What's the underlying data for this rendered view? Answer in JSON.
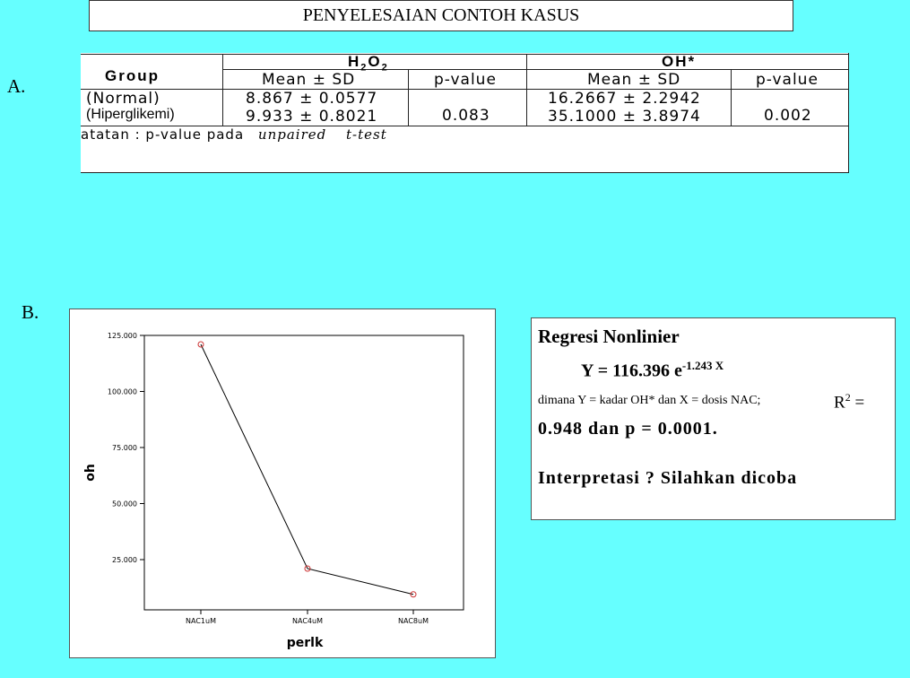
{
  "title": "PENYELESAIAN CONTOH KASUS",
  "section_a_label": "A.",
  "section_b_label": "B.",
  "table_a": {
    "group_header": "Group",
    "h2o2_header_base": "H",
    "h2o2_sub1": "2",
    "h2o2_mid": "O",
    "h2o2_sub2": "2",
    "oh_header": "OH*",
    "mean_sd_header": "Mean ± SD",
    "pvalue_header": "p-value",
    "rows": [
      {
        "group": "(Normal)",
        "h2o2_mean_sd": "8.867 ± 0.0577",
        "oh_mean_sd": "16.2667 ± 2.2942"
      },
      {
        "group": "(Hiperglikemi)",
        "h2o2_mean_sd": "9.933 ± 0.8021",
        "oh_mean_sd": "35.1000 ± 3.8974"
      }
    ],
    "h2o2_pvalue": "0.083",
    "oh_pvalue": "0.002",
    "note_prefix": "atatan : p-value pada",
    "note_italic1": "unpaired",
    "note_italic2": "t-test"
  },
  "chart_data": {
    "type": "line",
    "categories": [
      "NAC1uM",
      "NAC4uM",
      "NAC8uM"
    ],
    "values": [
      121,
      21,
      9.5
    ],
    "xlabel": "perlk",
    "ylabel": "oh",
    "ylim": [
      0,
      125
    ],
    "yticks": [
      25,
      50,
      75,
      100,
      125
    ],
    "ytick_labels": [
      "25.000",
      "50.000",
      "75.000",
      "100.000",
      "125.000"
    ],
    "marker_color": "#cc3333",
    "line_color": "#000000"
  },
  "regression": {
    "title": "Regresi Nonlinier",
    "eq_base": "Y = 116.396 e",
    "eq_exp": "-1.243 X",
    "description": "dimana Y = kadar OH* dan X = dosis NAC;",
    "r2_prefix": "R",
    "r2_sup": "2",
    "r2_suffix": " =",
    "r2_line2": "0.948  dan  p = 0.0001.",
    "interpretation": "Interpretasi ?  Silahkan dicoba"
  }
}
